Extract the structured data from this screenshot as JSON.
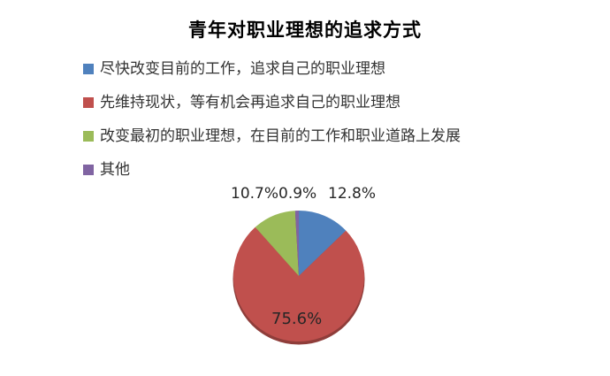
{
  "chart_data": {
    "type": "pie",
    "title": "青年对职业理想的追求方式",
    "categories": [
      "尽快改变目前的工作，追求自己的职业理想",
      "先维持现状，等有机会再追求自己的职业理想",
      "改变最初的职业理想，在目前的工作和职业道路上发展",
      "其他"
    ],
    "values": [
      12.8,
      75.6,
      10.7,
      0.9
    ],
    "value_labels": [
      "12.8%",
      "75.6%",
      "10.7%",
      "0.9%"
    ],
    "colors": [
      "#4f81bd",
      "#c0504d",
      "#9bbb59",
      "#8064a2"
    ],
    "rim_color": "#8f3d3a",
    "start_angle_deg": 0,
    "direction": "clockwise",
    "legend_position": "top-left",
    "background": "#ffffff"
  }
}
